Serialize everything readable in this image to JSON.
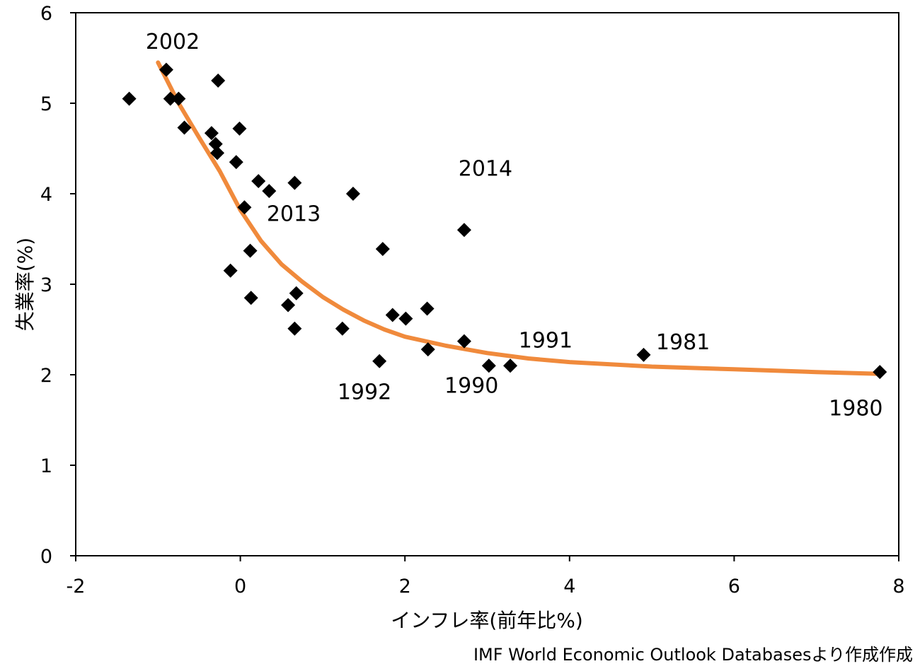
{
  "chart_data": {
    "type": "scatter",
    "xlabel": "インフレ率(前年比%)",
    "ylabel": "失業率(%)",
    "xlim": [
      -2,
      8
    ],
    "ylim": [
      0,
      6
    ],
    "xticks": [
      -2,
      0,
      2,
      4,
      6,
      8
    ],
    "yticks": [
      0,
      1,
      2,
      3,
      4,
      5,
      6
    ],
    "grid": false,
    "source": "IMF World Economic Outlook Databasesより作成作成",
    "colors": {
      "points": "#000000",
      "curve": "#f08a3c"
    },
    "points": [
      [
        -1.35,
        5.05
      ],
      [
        -0.9,
        5.37
      ],
      [
        -0.85,
        5.05
      ],
      [
        -0.75,
        5.05
      ],
      [
        -0.68,
        4.73
      ],
      [
        -0.35,
        4.67
      ],
      [
        -0.3,
        4.55
      ],
      [
        -0.28,
        4.45
      ],
      [
        -0.27,
        5.25
      ],
      [
        -0.05,
        4.35
      ],
      [
        -0.01,
        4.72
      ],
      [
        0.05,
        3.85
      ],
      [
        0.12,
        3.37
      ],
      [
        -0.12,
        3.15
      ],
      [
        0.13,
        2.85
      ],
      [
        0.22,
        4.14
      ],
      [
        0.35,
        4.03
      ],
      [
        0.66,
        4.12
      ],
      [
        0.58,
        2.77
      ],
      [
        0.68,
        2.9
      ],
      [
        0.66,
        2.51
      ],
      [
        1.37,
        4.0
      ],
      [
        1.24,
        2.51
      ],
      [
        1.73,
        3.39
      ],
      [
        1.85,
        2.66
      ],
      [
        2.01,
        2.62
      ],
      [
        1.69,
        2.15
      ],
      [
        2.27,
        2.73
      ],
      [
        2.28,
        2.28
      ],
      [
        2.72,
        3.6
      ],
      [
        2.72,
        2.37
      ],
      [
        3.02,
        2.1
      ],
      [
        3.28,
        2.1
      ],
      [
        4.9,
        2.22
      ],
      [
        7.77,
        2.03
      ]
    ],
    "trend": [
      [
        -1.0,
        5.45
      ],
      [
        -0.75,
        5.0
      ],
      [
        -0.5,
        4.62
      ],
      [
        -0.25,
        4.25
      ],
      [
        0,
        3.82
      ],
      [
        0.25,
        3.48
      ],
      [
        0.5,
        3.22
      ],
      [
        0.75,
        3.03
      ],
      [
        1.0,
        2.86
      ],
      [
        1.25,
        2.72
      ],
      [
        1.5,
        2.6
      ],
      [
        1.75,
        2.5
      ],
      [
        2.0,
        2.42
      ],
      [
        2.5,
        2.32
      ],
      [
        3.0,
        2.24
      ],
      [
        3.5,
        2.18
      ],
      [
        4.0,
        2.14
      ],
      [
        5.0,
        2.09
      ],
      [
        6.0,
        2.06
      ],
      [
        7.0,
        2.03
      ],
      [
        7.77,
        2.01
      ]
    ],
    "annotations": [
      {
        "text": "2002",
        "x": -1.15,
        "y": 5.6
      },
      {
        "text": "2014",
        "x": 2.65,
        "y": 4.2
      },
      {
        "text": "2013",
        "x": 0.32,
        "y": 3.7
      },
      {
        "text": "1991",
        "x": 3.38,
        "y": 2.3
      },
      {
        "text": "1981",
        "x": 5.05,
        "y": 2.28
      },
      {
        "text": "1992",
        "x": 1.18,
        "y": 1.73
      },
      {
        "text": "1990",
        "x": 2.48,
        "y": 1.8
      },
      {
        "text": "1980",
        "x": 7.15,
        "y": 1.55
      }
    ]
  }
}
